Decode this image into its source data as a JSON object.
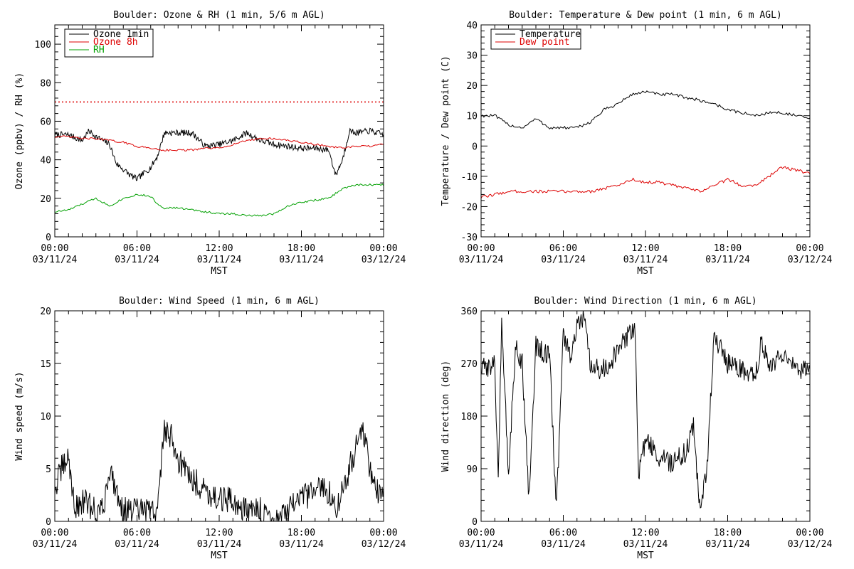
{
  "colors": {
    "black": "#000000",
    "red": "#dd0000",
    "green": "#00a000",
    "threshold": "#dd0000"
  },
  "chart_data": [
    {
      "id": "ozone",
      "type": "line",
      "title": "Boulder: Ozone & RH (1 min, 5/6 m AGL)",
      "xlabel": "MST",
      "ylabel": "Ozone (ppbv) / RH (%)",
      "ylim": [
        0,
        110
      ],
      "yticks": [
        0,
        20,
        40,
        60,
        80,
        100
      ],
      "xlim": [
        "03/11/24 00:00",
        "03/12/24 00:00"
      ],
      "xticks": [
        {
          "time": "00:00",
          "date": "03/11/24"
        },
        {
          "time": "06:00",
          "date": "03/11/24"
        },
        {
          "time": "12:00",
          "date": "03/11/24"
        },
        {
          "time": "18:00",
          "date": "03/11/24"
        },
        {
          "time": "00:00",
          "date": "03/12/24"
        }
      ],
      "legend": {
        "placement": "top-left"
      },
      "reference_lines": [
        {
          "y": 70,
          "style": "dotted",
          "color": "#dd0000"
        }
      ],
      "series": [
        {
          "name": "Ozone 1min",
          "color": "#000000",
          "x": [
            "00:00",
            "01:00",
            "02:00",
            "02:30",
            "03:00",
            "04:00",
            "04:30",
            "05:00",
            "05:30",
            "06:00",
            "06:30",
            "07:00",
            "07:30",
            "08:00",
            "09:00",
            "10:00",
            "11:00",
            "12:00",
            "13:00",
            "14:00",
            "15:00",
            "16:00",
            "17:00",
            "18:00",
            "19:00",
            "20:00",
            "20:30",
            "21:00",
            "21:30",
            "22:00",
            "23:00",
            "24:00"
          ],
          "values": [
            53,
            53,
            50,
            55,
            52,
            48,
            38,
            35,
            32,
            30,
            33,
            36,
            42,
            54,
            54,
            54,
            47,
            48,
            50,
            54,
            50,
            48,
            47,
            46,
            46,
            45,
            32,
            40,
            55,
            54,
            55,
            53
          ]
        },
        {
          "name": "Ozone 8h",
          "color": "#dd0000",
          "x": [
            "00:00",
            "01:00",
            "02:00",
            "03:00",
            "04:00",
            "05:00",
            "06:00",
            "07:00",
            "08:00",
            "09:00",
            "10:00",
            "11:00",
            "12:00",
            "13:00",
            "14:00",
            "15:00",
            "16:00",
            "17:00",
            "18:00",
            "19:00",
            "20:00",
            "21:00",
            "22:00",
            "23:00",
            "24:00"
          ],
          "values": [
            52,
            52,
            51,
            51,
            50,
            49,
            47,
            46,
            45,
            45,
            45,
            46,
            46,
            48,
            50,
            51,
            51,
            50,
            49,
            48,
            47,
            46,
            47,
            47,
            48
          ]
        },
        {
          "name": "RH",
          "color": "#00a000",
          "x": [
            "00:00",
            "01:00",
            "02:00",
            "03:00",
            "04:00",
            "05:00",
            "06:00",
            "07:00",
            "07:30",
            "08:00",
            "09:00",
            "10:00",
            "11:00",
            "12:00",
            "13:00",
            "14:00",
            "15:00",
            "16:00",
            "17:00",
            "18:00",
            "19:00",
            "20:00",
            "21:00",
            "22:00",
            "23:00",
            "24:00"
          ],
          "values": [
            13,
            14,
            17,
            20,
            16,
            20,
            22,
            21,
            17,
            15,
            15,
            14,
            13,
            12,
            12,
            11,
            11,
            12,
            16,
            18,
            19,
            20,
            25,
            27,
            27,
            27
          ]
        }
      ]
    },
    {
      "id": "temperature",
      "type": "line",
      "title": "Boulder: Temperature & Dew point (1 min, 6 m AGL)",
      "xlabel": "MST",
      "ylabel": "Temperature / Dew point (C)",
      "ylim": [
        -30,
        40
      ],
      "yticks": [
        -30,
        -20,
        -10,
        0,
        10,
        20,
        30,
        40
      ],
      "xlim": [
        "03/11/24 00:00",
        "03/12/24 00:00"
      ],
      "xticks": [
        {
          "time": "00:00",
          "date": "03/11/24"
        },
        {
          "time": "06:00",
          "date": "03/11/24"
        },
        {
          "time": "12:00",
          "date": "03/11/24"
        },
        {
          "time": "18:00",
          "date": "03/11/24"
        },
        {
          "time": "00:00",
          "date": "03/12/24"
        }
      ],
      "legend": {
        "placement": "top-left"
      },
      "series": [
        {
          "name": "Temperature",
          "color": "#000000",
          "x": [
            "00:00",
            "01:00",
            "02:00",
            "03:00",
            "04:00",
            "05:00",
            "06:00",
            "07:00",
            "08:00",
            "09:00",
            "10:00",
            "11:00",
            "12:00",
            "13:00",
            "14:00",
            "15:00",
            "16:00",
            "17:00",
            "18:00",
            "19:00",
            "20:00",
            "21:00",
            "22:00",
            "23:00",
            "24:00"
          ],
          "values": [
            10,
            10,
            7,
            6,
            9,
            6,
            6,
            6,
            8,
            12,
            14,
            17,
            18,
            17,
            17,
            16,
            15,
            14,
            12,
            11,
            10,
            11,
            11,
            10,
            9
          ]
        },
        {
          "name": "Dew point",
          "color": "#dd0000",
          "x": [
            "00:00",
            "01:00",
            "02:00",
            "03:00",
            "04:00",
            "05:00",
            "06:00",
            "07:00",
            "08:00",
            "09:00",
            "10:00",
            "11:00",
            "12:00",
            "13:00",
            "14:00",
            "15:00",
            "16:00",
            "17:00",
            "18:00",
            "19:00",
            "20:00",
            "21:00",
            "22:00",
            "23:00",
            "24:00"
          ],
          "values": [
            -17,
            -16,
            -15,
            -15,
            -15,
            -15,
            -15,
            -15,
            -15,
            -14,
            -13,
            -11,
            -12,
            -12,
            -13,
            -14,
            -15,
            -13,
            -11,
            -13,
            -13,
            -10,
            -7,
            -8,
            -9
          ]
        }
      ]
    },
    {
      "id": "wind-speed",
      "type": "line",
      "title": "Boulder: Wind Speed (1 min, 6 m AGL)",
      "xlabel": "MST",
      "ylabel": "Wind speed (m/s)",
      "ylim": [
        0,
        20
      ],
      "yticks": [
        0,
        5,
        10,
        15,
        20
      ],
      "xlim": [
        "03/11/24 00:00",
        "03/12/24 00:00"
      ],
      "xticks": [
        {
          "time": "00:00",
          "date": "03/11/24"
        },
        {
          "time": "06:00",
          "date": "03/11/24"
        },
        {
          "time": "12:00",
          "date": "03/11/24"
        },
        {
          "time": "18:00",
          "date": "03/11/24"
        },
        {
          "time": "00:00",
          "date": "03/12/24"
        }
      ],
      "series": [
        {
          "color": "#000000",
          "x": [
            "00:00",
            "00:30",
            "01:00",
            "01:30",
            "02:00",
            "03:00",
            "03:30",
            "04:00",
            "05:00",
            "06:00",
            "07:00",
            "07:30",
            "08:00",
            "08:30",
            "09:00",
            "10:00",
            "11:00",
            "12:00",
            "13:00",
            "14:00",
            "15:00",
            "16:00",
            "17:00",
            "18:00",
            "19:00",
            "20:00",
            "20:30",
            "21:00",
            "21:30",
            "22:00",
            "22:30",
            "23:00",
            "23:30",
            "24:00"
          ],
          "values": [
            3,
            5,
            6,
            1,
            2,
            1,
            1,
            5,
            1,
            1,
            1,
            1,
            9,
            8,
            6,
            4,
            3,
            2,
            2,
            1,
            1,
            0,
            1,
            2,
            3,
            3,
            1,
            3,
            5,
            7,
            9,
            5,
            3,
            2
          ]
        }
      ]
    },
    {
      "id": "wind-direction",
      "type": "line",
      "title": "Boulder: Wind Direction (1 min, 6 m AGL)",
      "xlabel": "MST",
      "ylabel": "Wind direction (deg)",
      "ylim": [
        0,
        360
      ],
      "yticks": [
        0,
        90,
        180,
        270,
        360
      ],
      "xlim": [
        "03/11/24 00:00",
        "03/12/24 00:00"
      ],
      "xticks": [
        {
          "time": "00:00",
          "date": "03/11/24"
        },
        {
          "time": "06:00",
          "date": "03/11/24"
        },
        {
          "time": "12:00",
          "date": "03/11/24"
        },
        {
          "time": "18:00",
          "date": "03/11/24"
        },
        {
          "time": "00:00",
          "date": "03/12/24"
        }
      ],
      "series": [
        {
          "color": "#000000",
          "x": [
            "00:00",
            "00:30",
            "01:00",
            "01:15",
            "01:30",
            "02:00",
            "02:30",
            "03:00",
            "03:30",
            "04:00",
            "04:30",
            "05:00",
            "05:30",
            "06:00",
            "06:30",
            "07:00",
            "07:30",
            "08:00",
            "09:00",
            "10:00",
            "10:30",
            "11:00",
            "11:15",
            "11:30",
            "12:00",
            "13:00",
            "14:00",
            "15:00",
            "15:30",
            "16:00",
            "16:30",
            "17:00",
            "18:00",
            "19:00",
            "20:00",
            "20:30",
            "21:00",
            "22:00",
            "23:00",
            "24:00"
          ],
          "values": [
            260,
            265,
            270,
            60,
            350,
            80,
            300,
            270,
            40,
            300,
            290,
            280,
            20,
            320,
            280,
            330,
            350,
            260,
            260,
            290,
            310,
            330,
            320,
            80,
            140,
            110,
            100,
            120,
            160,
            20,
            90,
            320,
            270,
            260,
            250,
            310,
            270,
            280,
            260,
            255
          ]
        }
      ]
    }
  ]
}
